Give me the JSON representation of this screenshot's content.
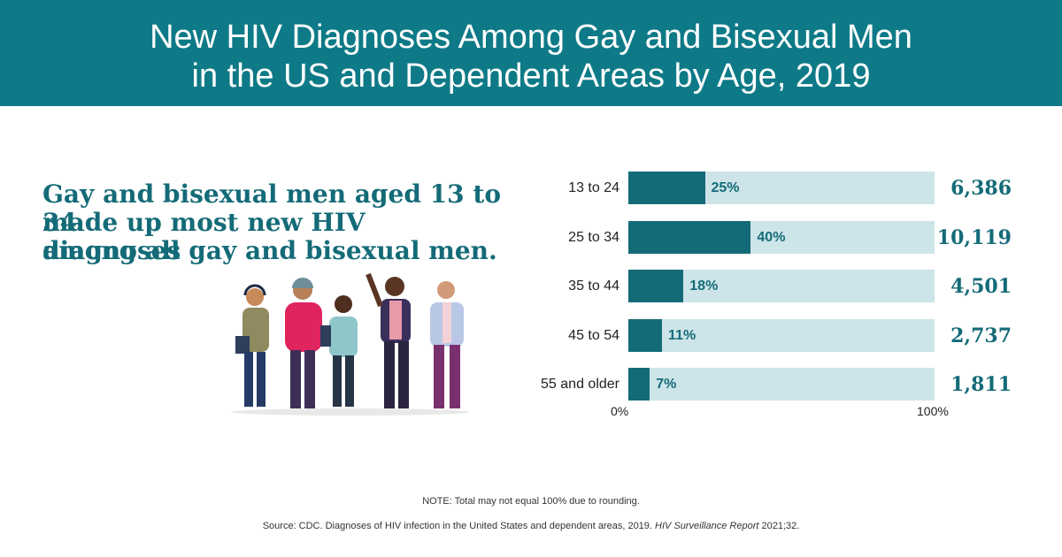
{
  "header": {
    "title_line1": "New HIV Diagnoses Among Gay and Bisexual Men",
    "title_line2": "in the US and Dependent Areas by Age, 2019"
  },
  "callout": {
    "line1": "Gay and bisexual men aged 13 to 34",
    "line2": "made up most new HIV diagnoses",
    "line3": "among all gay and bisexual men."
  },
  "chart_data": {
    "type": "bar",
    "orientation": "horizontal",
    "categories": [
      "13 to 24",
      "25 to 34",
      "35 to 44",
      "45 to 54",
      "55 and older"
    ],
    "values": [
      25,
      40,
      18,
      11,
      7
    ],
    "value_labels": [
      "25%",
      "40%",
      "18%",
      "11%",
      "7%"
    ],
    "counts": [
      "6,386",
      "10,119",
      "4,501",
      "2,737",
      "1,811"
    ],
    "xlim": [
      0,
      100
    ],
    "x_tick_labels": [
      "0%",
      "100%"
    ],
    "colors": {
      "fill": "#146b78",
      "track": "#cde4e8"
    }
  },
  "footer": {
    "note": "NOTE: Total may not equal 100% due to rounding.",
    "source_prefix": "Source: CDC. Diagnoses of HIV infection in the United States and dependent areas, 2019. ",
    "source_italic": "HIV Surveillance Report",
    "source_suffix": " 2021;32."
  },
  "colors": {
    "header_bg": "#0e7a87",
    "accent": "#146b78"
  },
  "illustration": {
    "icon": "group-of-men-illustration"
  }
}
